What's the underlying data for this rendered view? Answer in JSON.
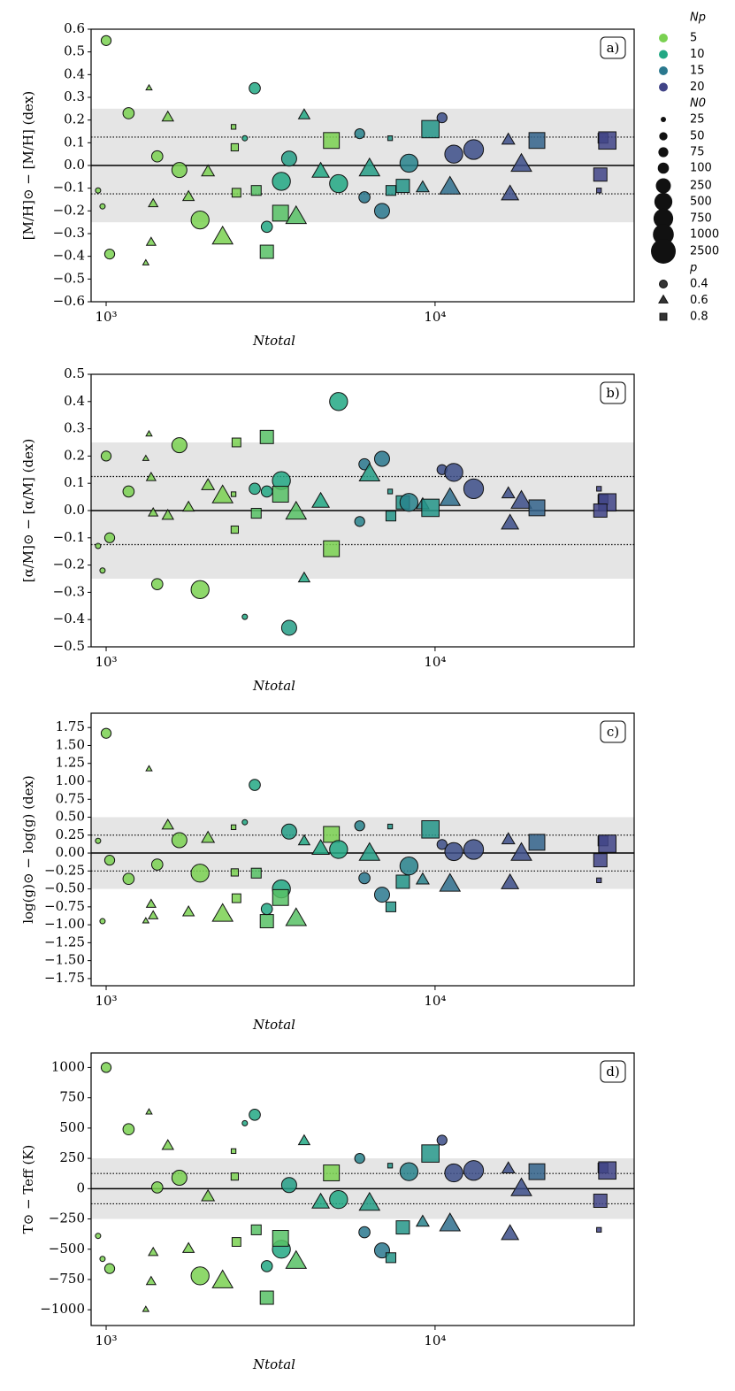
{
  "runs": {
    "x": [
      1000,
      945,
      975,
      1025,
      1170,
      1430,
      1350,
      1320,
      1370,
      1390,
      1540,
      1670,
      1780,
      1930,
      2040,
      2260,
      2440,
      2460,
      2490,
      2640,
      2830,
      2860,
      3080,
      3410,
      3080,
      3390,
      3780,
      3600,
      4000,
      4490,
      4840,
      5090,
      5900,
      6100,
      6320,
      6900,
      7300,
      7340,
      7980,
      8330,
      9170,
      9680,
      10500,
      11100,
      11400,
      13100,
      16700,
      16900,
      18300,
      20400,
      32400,
      33400,
      31500,
      31800
    ],
    "np": [
      5,
      5,
      5,
      5,
      5,
      5,
      5,
      5,
      5,
      5,
      5,
      5,
      5,
      5,
      5,
      5,
      5,
      5,
      5,
      10,
      10,
      7,
      7,
      10,
      10,
      7,
      7,
      11,
      10,
      10,
      5,
      10,
      14,
      15,
      11,
      15,
      12,
      12,
      12,
      14,
      14,
      12,
      19,
      16,
      19,
      19,
      19,
      19,
      19,
      17,
      20,
      20,
      20,
      20
    ],
    "n0": [
      75,
      25,
      25,
      75,
      100,
      100,
      25,
      25,
      50,
      50,
      75,
      250,
      75,
      500,
      100,
      500,
      25,
      50,
      75,
      25,
      100,
      100,
      250,
      500,
      100,
      500,
      500,
      250,
      75,
      250,
      500,
      500,
      75,
      100,
      500,
      250,
      25,
      100,
      250,
      500,
      100,
      750,
      75,
      500,
      500,
      750,
      100,
      250,
      500,
      500,
      100,
      750,
      25,
      250
    ],
    "p": [
      0.4,
      0.4,
      0.4,
      0.4,
      0.4,
      0.4,
      0.6,
      0.6,
      0.6,
      0.6,
      0.6,
      0.4,
      0.6,
      0.4,
      0.6,
      0.6,
      0.8,
      0.8,
      0.8,
      0.4,
      0.4,
      0.8,
      0.8,
      0.4,
      0.4,
      0.8,
      0.6,
      0.4,
      0.6,
      0.6,
      0.8,
      0.4,
      0.4,
      0.4,
      0.6,
      0.4,
      0.8,
      0.8,
      0.8,
      0.4,
      0.6,
      0.8,
      0.4,
      0.6,
      0.4,
      0.4,
      0.6,
      0.6,
      0.6,
      0.8,
      0.8,
      0.8,
      0.8,
      0.8
    ]
  },
  "legend": {
    "np_title": "Np",
    "np": [
      {
        "label": "5",
        "color": "#7ad151"
      },
      {
        "label": "10",
        "color": "#22a884"
      },
      {
        "label": "15",
        "color": "#2a788e"
      },
      {
        "label": "20",
        "color": "#414487"
      }
    ],
    "n0_title": "N0",
    "n0": [
      25,
      50,
      75,
      100,
      250,
      500,
      750,
      1000,
      2500
    ],
    "p_title": "p",
    "p": [
      0.4,
      0.6,
      0.8
    ]
  },
  "chart_data": [
    {
      "type": "scatter",
      "panel_label": "a)",
      "xlabel": "Ntotal",
      "ylabel": "[M/H]⊙ − [M/H] (dex)",
      "xscale": "log",
      "xlim": [
        900,
        40300
      ],
      "xticks": [
        {
          "value": 1000,
          "label": "10³"
        },
        {
          "value": 10000,
          "label": "10⁴"
        }
      ],
      "ylim": [
        -0.6,
        0.6
      ],
      "yticks": [
        {
          "value": -0.6,
          "label": "−0.6"
        },
        {
          "value": -0.5,
          "label": "−0.5"
        },
        {
          "value": -0.4,
          "label": "−0.4"
        },
        {
          "value": -0.3,
          "label": "−0.3"
        },
        {
          "value": -0.2,
          "label": "−0.2"
        },
        {
          "value": -0.1,
          "label": "−0.1"
        },
        {
          "value": 0,
          "label": "0.0"
        },
        0.1,
        0.2,
        0.3,
        0.4,
        0.5,
        0.6
      ],
      "band": [
        -0.25,
        0.25
      ],
      "dotted": [
        -0.125,
        0.125
      ],
      "hline": 0,
      "values": [
        0.55,
        -0.11,
        -0.18,
        -0.39,
        0.23,
        0.04,
        0.34,
        -0.43,
        -0.34,
        -0.17,
        0.21,
        -0.02,
        -0.14,
        -0.24,
        -0.03,
        -0.32,
        0.17,
        0.08,
        -0.12,
        0.12,
        0.34,
        -0.11,
        -0.38,
        -0.07,
        -0.27,
        -0.21,
        -0.23,
        0.03,
        0.22,
        -0.03,
        0.11,
        -0.08,
        0.14,
        -0.14,
        -0.02,
        -0.2,
        0.12,
        -0.11,
        -0.09,
        0.01,
        -0.1,
        0.16,
        0.21,
        -0.1,
        0.05,
        0.07,
        0.11,
        -0.13,
        0,
        0.11,
        0.12,
        0.11,
        -0.11,
        -0.04
      ]
    },
    {
      "type": "scatter",
      "panel_label": "b)",
      "xlabel": "Ntotal",
      "ylabel": "[α/M]⊙ − [α/M] (dex)",
      "xscale": "log",
      "xlim": [
        900,
        40300
      ],
      "xticks": [
        {
          "value": 1000,
          "label": "10³"
        },
        {
          "value": 10000,
          "label": "10⁴"
        }
      ],
      "ylim": [
        -0.5,
        0.5
      ],
      "yticks": [
        {
          "value": -0.5,
          "label": "−0.5"
        },
        {
          "value": -0.4,
          "label": "−0.4"
        },
        {
          "value": -0.3,
          "label": "−0.3"
        },
        {
          "value": -0.2,
          "label": "−0.2"
        },
        {
          "value": -0.1,
          "label": "−0.1"
        },
        {
          "value": 0,
          "label": "0.0"
        },
        0.1,
        0.2,
        0.3,
        0.4,
        0.5
      ],
      "band": [
        -0.25,
        0.25
      ],
      "dotted": [
        -0.125,
        0.125
      ],
      "hline": 0,
      "values": [
        0.2,
        -0.13,
        -0.22,
        -0.1,
        0.07,
        -0.27,
        0.28,
        0.19,
        0.12,
        -0.01,
        -0.02,
        0.24,
        0.01,
        -0.29,
        0.09,
        0.05,
        0.06,
        -0.07,
        0.25,
        -0.39,
        0.08,
        -0.01,
        0.27,
        0.11,
        0.07,
        0.06,
        -0.01,
        -0.43,
        -0.25,
        0.03,
        -0.14,
        0.4,
        -0.04,
        0.17,
        0.13,
        0.19,
        0.07,
        -0.02,
        0.03,
        0.03,
        0.02,
        0.01,
        0.15,
        0.04,
        0.14,
        0.08,
        0.06,
        -0.05,
        0.03,
        0.01,
        0.04,
        0.03,
        0.08,
        0
      ]
    },
    {
      "type": "scatter",
      "panel_label": "c)",
      "xlabel": "Ntotal",
      "ylabel": "log(g)⊙ − log(g) (dex)",
      "xscale": "log",
      "xlim": [
        900,
        40300
      ],
      "xticks": [
        {
          "value": 1000,
          "label": "10³"
        },
        {
          "value": 10000,
          "label": "10⁴"
        }
      ],
      "ylim": [
        -1.85,
        1.95
      ],
      "yticks": [
        {
          "value": -1.75,
          "label": "−1.75"
        },
        {
          "value": -1.5,
          "label": "−1.50"
        },
        {
          "value": -1.25,
          "label": "−1.25"
        },
        {
          "value": -1,
          "label": "−1.00"
        },
        {
          "value": -0.75,
          "label": "−0.75"
        },
        {
          "value": -0.5,
          "label": "−0.50"
        },
        {
          "value": -0.25,
          "label": "−0.25"
        },
        {
          "value": 0,
          "label": "0.00"
        },
        0.25,
        {
          "value": 0.5,
          "label": "0.50"
        },
        0.75,
        {
          "value": 1,
          "label": "1.00"
        },
        1.25,
        {
          "value": 1.5,
          "label": "1.50"
        },
        1.75
      ],
      "band": [
        -0.5,
        0.5
      ],
      "dotted": [
        -0.25,
        0.25
      ],
      "hline": 0,
      "values": [
        1.67,
        0.17,
        -0.95,
        -0.1,
        -0.36,
        -0.16,
        1.17,
        -0.95,
        -0.72,
        -0.88,
        0.38,
        0.18,
        -0.83,
        -0.28,
        0.2,
        -0.87,
        0.36,
        -0.27,
        -0.63,
        0.43,
        0.95,
        -0.28,
        -0.95,
        -0.5,
        -0.78,
        -0.62,
        -0.93,
        0.3,
        0.16,
        0.05,
        0.26,
        0.05,
        0.38,
        -0.35,
        -0.02,
        -0.58,
        0.37,
        -0.75,
        -0.4,
        -0.18,
        -0.38,
        0.33,
        0.12,
        -0.45,
        0.02,
        0.05,
        0.18,
        -0.43,
        -0.02,
        0.15,
        0.17,
        0.13,
        -0.38,
        -0.1
      ]
    },
    {
      "type": "scatter",
      "panel_label": "d)",
      "xlabel": "Ntotal",
      "ylabel": "T⊙ − Teff (K)",
      "xscale": "log",
      "xlim": [
        900,
        40300
      ],
      "xticks": [
        {
          "value": 1000,
          "label": "10³"
        },
        {
          "value": 10000,
          "label": "10⁴"
        }
      ],
      "ylim": [
        -1130,
        1120
      ],
      "yticks": [
        {
          "value": -1000,
          "label": "−1000"
        },
        {
          "value": -750,
          "label": "−750"
        },
        {
          "value": -500,
          "label": "−500"
        },
        {
          "value": -250,
          "label": "−250"
        },
        0,
        250,
        500,
        750,
        1000
      ],
      "band": [
        -250,
        250
      ],
      "dotted": [
        -125,
        125
      ],
      "hline": 0,
      "values": [
        1000,
        -390,
        -580,
        -660,
        490,
        10,
        630,
        -1000,
        -770,
        -530,
        350,
        90,
        -500,
        -720,
        -70,
        -770,
        310,
        100,
        -440,
        540,
        610,
        -340,
        -900,
        -500,
        -640,
        -410,
        -610,
        30,
        390,
        -120,
        130,
        -90,
        250,
        -360,
        -130,
        -510,
        190,
        -570,
        -320,
        140,
        -280,
        290,
        400,
        -300,
        130,
        150,
        160,
        -380,
        -10,
        140,
        170,
        150,
        -340,
        -100
      ]
    }
  ]
}
